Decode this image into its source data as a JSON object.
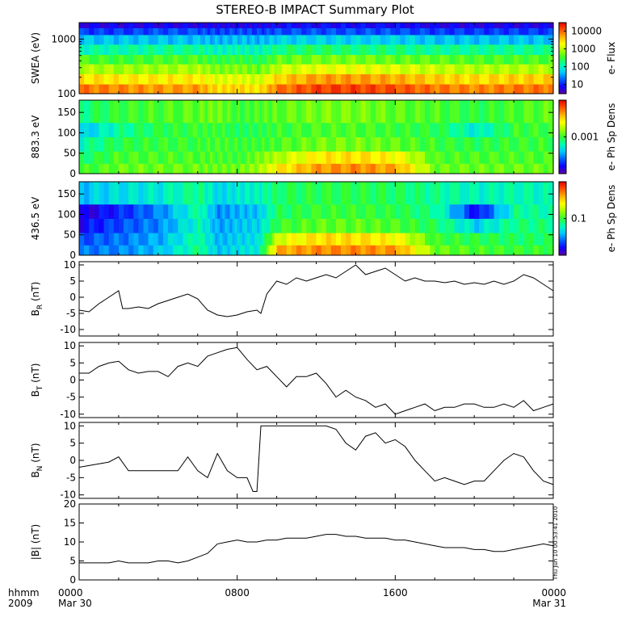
{
  "title": "STEREO-B IMPACT Summary Plot",
  "x_axis": {
    "row1_label": "hhmm",
    "row2_label": "2009",
    "ticks": [
      {
        "hour": 0,
        "label": "0000",
        "sublabel": "Mar 30"
      },
      {
        "hour": 8,
        "label": "0800",
        "sublabel": ""
      },
      {
        "hour": 16,
        "label": "1600",
        "sublabel": ""
      },
      {
        "hour": 24,
        "label": "0000",
        "sublabel": "Mar 31"
      }
    ]
  },
  "timestamp": "Thu Jun 10 00:53:41 2010",
  "spectrogram_palette": [
    "#5a00a0",
    "#1000ff",
    "#0060ff",
    "#00c8ff",
    "#00ffb0",
    "#30ff30",
    "#a0ff00",
    "#ffff00",
    "#ffb000",
    "#ff5000",
    "#e00000"
  ],
  "chart_data": [
    {
      "type": "heatmap",
      "ylabel": "SWEA (eV)",
      "yscale": "log",
      "ylim": [
        100,
        2000
      ],
      "yticks": [
        {
          "v": 100,
          "label": "100"
        },
        {
          "v": 1000,
          "label": "1000"
        }
      ],
      "colorbar": {
        "label": "e- Flux",
        "scale": "log",
        "range": [
          3,
          30000
        ],
        "ticks": [
          {
            "v": 10,
            "label": "10"
          },
          {
            "v": 100,
            "label": "100"
          },
          {
            "v": 1000,
            "label": "1000"
          },
          {
            "v": 10000,
            "label": "10000"
          }
        ]
      },
      "x": [
        0,
        2,
        4,
        6,
        7,
        8,
        9,
        10,
        12,
        14,
        16,
        18,
        20,
        22,
        24
      ],
      "bands": [
        {
          "e_from": 100,
          "e_to": 150,
          "levels": [
            0.86,
            0.84,
            0.82,
            0.82,
            0.74,
            0.76,
            0.72,
            0.86,
            0.92,
            0.92,
            0.9,
            0.86,
            0.84,
            0.86,
            0.86
          ]
        },
        {
          "e_from": 150,
          "e_to": 230,
          "levels": [
            0.74,
            0.72,
            0.72,
            0.72,
            0.66,
            0.68,
            0.64,
            0.76,
            0.82,
            0.82,
            0.8,
            0.76,
            0.74,
            0.76,
            0.76
          ]
        },
        {
          "e_from": 230,
          "e_to": 350,
          "levels": [
            0.62,
            0.6,
            0.6,
            0.62,
            0.56,
            0.58,
            0.54,
            0.64,
            0.68,
            0.68,
            0.66,
            0.64,
            0.62,
            0.62,
            0.62
          ]
        },
        {
          "e_from": 350,
          "e_to": 520,
          "levels": [
            0.52,
            0.5,
            0.52,
            0.52,
            0.48,
            0.5,
            0.46,
            0.54,
            0.56,
            0.56,
            0.54,
            0.54,
            0.52,
            0.52,
            0.52
          ]
        },
        {
          "e_from": 520,
          "e_to": 800,
          "levels": [
            0.4,
            0.4,
            0.42,
            0.42,
            0.38,
            0.4,
            0.38,
            0.44,
            0.46,
            0.44,
            0.44,
            0.42,
            0.42,
            0.42,
            0.42
          ]
        },
        {
          "e_from": 800,
          "e_to": 1200,
          "levels": [
            0.3,
            0.3,
            0.3,
            0.3,
            0.28,
            0.3,
            0.28,
            0.32,
            0.32,
            0.32,
            0.32,
            0.3,
            0.3,
            0.3,
            0.3
          ]
        },
        {
          "e_from": 1200,
          "e_to": 1600,
          "levels": [
            0.16,
            0.16,
            0.18,
            0.18,
            0.16,
            0.18,
            0.16,
            0.18,
            0.18,
            0.18,
            0.18,
            0.16,
            0.16,
            0.16,
            0.16
          ]
        },
        {
          "e_from": 1600,
          "e_to": 2000,
          "levels": [
            0.08,
            0.08,
            0.08,
            0.08,
            0.08,
            0.08,
            0.08,
            0.1,
            0.1,
            0.1,
            0.1,
            0.08,
            0.08,
            0.08,
            0.08
          ]
        }
      ]
    },
    {
      "type": "heatmap",
      "ylabel": "883.3 eV",
      "yscale": "linear",
      "ylim": [
        0,
        180
      ],
      "yticks": [
        {
          "v": 0,
          "label": "0"
        },
        {
          "v": 50,
          "label": "50"
        },
        {
          "v": 100,
          "label": "100"
        },
        {
          "v": 150,
          "label": "150"
        }
      ],
      "colorbar": {
        "label": "e- Ph Sp Dens",
        "scale": "log",
        "range": [
          0.0001,
          0.01
        ],
        "ticks": [
          {
            "v": 0.001,
            "label": "0.001"
          }
        ]
      },
      "x": [
        0,
        2,
        4,
        6,
        7,
        8,
        9,
        10,
        12,
        14,
        16,
        18,
        20,
        22,
        24
      ],
      "bands": [
        {
          "e_from": 0,
          "e_to": 25,
          "levels": [
            0.5,
            0.55,
            0.55,
            0.55,
            0.55,
            0.55,
            0.6,
            0.72,
            0.82,
            0.84,
            0.8,
            0.55,
            0.55,
            0.55,
            0.55
          ]
        },
        {
          "e_from": 25,
          "e_to": 55,
          "levels": [
            0.45,
            0.52,
            0.52,
            0.52,
            0.52,
            0.5,
            0.56,
            0.62,
            0.72,
            0.74,
            0.7,
            0.52,
            0.52,
            0.52,
            0.52
          ]
        },
        {
          "e_from": 55,
          "e_to": 90,
          "levels": [
            0.4,
            0.48,
            0.5,
            0.5,
            0.52,
            0.5,
            0.5,
            0.52,
            0.56,
            0.56,
            0.54,
            0.5,
            0.48,
            0.5,
            0.5
          ]
        },
        {
          "e_from": 90,
          "e_to": 125,
          "levels": [
            0.3,
            0.42,
            0.48,
            0.5,
            0.5,
            0.46,
            0.48,
            0.5,
            0.52,
            0.52,
            0.5,
            0.48,
            0.36,
            0.5,
            0.5
          ]
        },
        {
          "e_from": 125,
          "e_to": 180,
          "levels": [
            0.44,
            0.5,
            0.52,
            0.54,
            0.56,
            0.5,
            0.52,
            0.54,
            0.56,
            0.56,
            0.54,
            0.52,
            0.48,
            0.52,
            0.54
          ]
        }
      ]
    },
    {
      "type": "heatmap",
      "ylabel": "436.5 eV",
      "yscale": "linear",
      "ylim": [
        0,
        180
      ],
      "yticks": [
        {
          "v": 0,
          "label": "0"
        },
        {
          "v": 50,
          "label": "50"
        },
        {
          "v": 100,
          "label": "100"
        },
        {
          "v": 150,
          "label": "150"
        }
      ],
      "colorbar": {
        "label": "e- Ph Sp Dens",
        "scale": "log",
        "range": [
          0.01,
          1
        ],
        "ticks": [
          {
            "v": 0.1,
            "label": "0.1"
          }
        ]
      },
      "x": [
        0,
        2,
        4,
        6,
        7,
        8,
        9,
        10,
        12,
        14,
        16,
        18,
        20,
        22,
        24
      ],
      "bands": [
        {
          "e_from": 0,
          "e_to": 25,
          "levels": [
            0.22,
            0.24,
            0.3,
            0.44,
            0.3,
            0.34,
            0.36,
            0.8,
            0.84,
            0.84,
            0.82,
            0.55,
            0.52,
            0.5,
            0.5
          ]
        },
        {
          "e_from": 25,
          "e_to": 55,
          "levels": [
            0.18,
            0.22,
            0.28,
            0.42,
            0.28,
            0.32,
            0.34,
            0.66,
            0.74,
            0.74,
            0.7,
            0.5,
            0.48,
            0.46,
            0.46
          ]
        },
        {
          "e_from": 55,
          "e_to": 90,
          "levels": [
            0.1,
            0.18,
            0.24,
            0.4,
            0.26,
            0.3,
            0.32,
            0.5,
            0.54,
            0.54,
            0.52,
            0.46,
            0.32,
            0.44,
            0.44
          ]
        },
        {
          "e_from": 90,
          "e_to": 125,
          "levels": [
            0.06,
            0.14,
            0.24,
            0.42,
            0.24,
            0.28,
            0.3,
            0.46,
            0.5,
            0.5,
            0.48,
            0.42,
            0.1,
            0.42,
            0.4
          ]
        },
        {
          "e_from": 125,
          "e_to": 180,
          "levels": [
            0.3,
            0.34,
            0.36,
            0.44,
            0.32,
            0.36,
            0.38,
            0.46,
            0.48,
            0.48,
            0.46,
            0.42,
            0.38,
            0.4,
            0.38
          ]
        }
      ]
    },
    {
      "type": "line",
      "ylabel_main": "B",
      "ylabel_sub": "R",
      "ylabel_unit": "(nT)",
      "ylim": [
        -12,
        11
      ],
      "yticks": [
        {
          "v": -10,
          "label": "-10"
        },
        {
          "v": -5,
          "label": "-5"
        },
        {
          "v": 0,
          "label": "0"
        },
        {
          "v": 5,
          "label": "5"
        },
        {
          "v": 10,
          "label": "10"
        }
      ],
      "x": [
        0,
        0.5,
        1,
        1.5,
        2,
        2.2,
        2.5,
        3,
        3.5,
        4,
        4.5,
        5,
        5.5,
        6,
        6.5,
        7,
        7.5,
        8,
        8.5,
        9,
        9.2,
        9.5,
        10,
        10.5,
        11,
        11.5,
        12,
        12.5,
        13,
        13.5,
        14,
        14.5,
        15,
        15.5,
        16,
        16.5,
        17,
        17.5,
        18,
        18.5,
        19,
        19.5,
        20,
        20.5,
        21,
        21.5,
        22,
        22.5,
        23,
        23.5,
        24
      ],
      "values": [
        -4,
        -4.5,
        -2,
        0,
        2,
        -3.5,
        -3.5,
        -3,
        -3.5,
        -2,
        -1,
        0,
        1,
        -0.5,
        -4,
        -5.5,
        -6,
        -5.5,
        -4.5,
        -4,
        -5,
        1,
        5,
        4,
        6,
        5,
        6,
        7,
        6,
        8,
        10,
        7,
        8,
        9,
        7,
        5,
        6,
        5,
        5,
        4.5,
        5,
        4,
        4.5,
        4,
        5,
        4,
        5,
        7,
        6,
        4,
        2
      ]
    },
    {
      "type": "line",
      "ylabel_main": "B",
      "ylabel_sub": "T",
      "ylabel_unit": "(nT)",
      "ylim": [
        -11,
        11
      ],
      "yticks": [
        {
          "v": -10,
          "label": "-10"
        },
        {
          "v": -5,
          "label": "-5"
        },
        {
          "v": 0,
          "label": "0"
        },
        {
          "v": 5,
          "label": "5"
        },
        {
          "v": 10,
          "label": "10"
        }
      ],
      "x": [
        0,
        0.5,
        1,
        1.5,
        2,
        2.5,
        3,
        3.5,
        4,
        4.5,
        5,
        5.5,
        6,
        6.5,
        7,
        7.5,
        8,
        8.5,
        9,
        9.5,
        10,
        10.5,
        11,
        11.5,
        12,
        12.5,
        13,
        13.5,
        14,
        14.5,
        15,
        15.5,
        16,
        16.5,
        17,
        17.5,
        18,
        18.5,
        19,
        19.5,
        20,
        20.5,
        21,
        21.5,
        22,
        22.5,
        23,
        23.5,
        24
      ],
      "values": [
        2,
        2,
        4,
        5,
        5.5,
        3,
        2,
        2.5,
        2.5,
        1,
        4,
        5,
        4,
        7,
        8,
        9,
        9.5,
        6,
        3,
        4,
        1,
        -2,
        1,
        1,
        2,
        -1,
        -5,
        -3,
        -5,
        -6,
        -8,
        -7,
        -10,
        -9,
        -8,
        -7,
        -9,
        -8,
        -8,
        -7,
        -7,
        -8,
        -8,
        -7,
        -8,
        -6,
        -9,
        -8,
        -7
      ]
    },
    {
      "type": "line",
      "ylabel_main": "B",
      "ylabel_sub": "N",
      "ylabel_unit": "(nT)",
      "ylim": [
        -11,
        11
      ],
      "yticks": [
        {
          "v": -10,
          "label": "-10"
        },
        {
          "v": -5,
          "label": "-5"
        },
        {
          "v": 0,
          "label": "0"
        },
        {
          "v": 5,
          "label": "5"
        },
        {
          "v": 10,
          "label": "10"
        }
      ],
      "x": [
        0,
        0.5,
        1,
        1.5,
        2,
        2.5,
        3,
        3.5,
        4,
        4.5,
        5,
        5.5,
        6,
        6.5,
        7,
        7.5,
        8,
        8.5,
        8.8,
        9,
        9.2,
        9.5,
        10,
        10.5,
        11,
        11.5,
        12,
        12.5,
        13,
        13.5,
        14,
        14.5,
        15,
        15.5,
        16,
        16.5,
        17,
        17.5,
        18,
        18.5,
        19,
        19.5,
        20,
        20.5,
        21,
        21.5,
        22,
        22.5,
        23,
        23.5,
        24
      ],
      "values": [
        -2,
        -1.5,
        -1,
        -0.5,
        1,
        -3,
        -3,
        -3,
        -3,
        -3,
        -3,
        1,
        -3,
        -5,
        2,
        -3,
        -5,
        -5,
        -9,
        -9,
        10,
        10,
        10,
        10,
        10,
        10,
        10,
        10,
        9,
        5,
        3,
        7,
        8,
        5,
        6,
        4,
        0,
        -3,
        -6,
        -5,
        -6,
        -7,
        -6,
        -6,
        -3,
        0,
        2,
        1,
        -3,
        -6,
        -7
      ]
    },
    {
      "type": "line",
      "ylabel_main": "|B|",
      "ylabel_sub": "",
      "ylabel_unit": "(nT)",
      "ylim": [
        0,
        20
      ],
      "yticks": [
        {
          "v": 0,
          "label": "0"
        },
        {
          "v": 5,
          "label": "5"
        },
        {
          "v": 10,
          "label": "10"
        },
        {
          "v": 15,
          "label": "15"
        },
        {
          "v": 20,
          "label": "20"
        }
      ],
      "x": [
        0,
        0.5,
        1,
        1.5,
        2,
        2.5,
        3,
        3.5,
        4,
        4.5,
        5,
        5.5,
        6,
        6.5,
        7,
        7.5,
        8,
        8.5,
        9,
        9.5,
        10,
        10.5,
        11,
        11.5,
        12,
        12.5,
        13,
        13.5,
        14,
        14.5,
        15,
        15.5,
        16,
        16.5,
        17,
        17.5,
        18,
        18.5,
        19,
        19.5,
        20,
        20.5,
        21,
        21.5,
        22,
        22.5,
        23,
        23.5,
        24
      ],
      "values": [
        4.5,
        4.5,
        4.5,
        4.5,
        5,
        4.5,
        4.5,
        4.5,
        5,
        5,
        4.5,
        5,
        6,
        7,
        9.5,
        10,
        10.5,
        10,
        10,
        10.5,
        10.5,
        11,
        11,
        11,
        11.5,
        12,
        12,
        11.5,
        11.5,
        11,
        11,
        11,
        10.5,
        10.5,
        10,
        9.5,
        9,
        8.5,
        8.5,
        8.5,
        8,
        8,
        7.5,
        7.5,
        8,
        8.5,
        9,
        9.5,
        9
      ]
    }
  ]
}
